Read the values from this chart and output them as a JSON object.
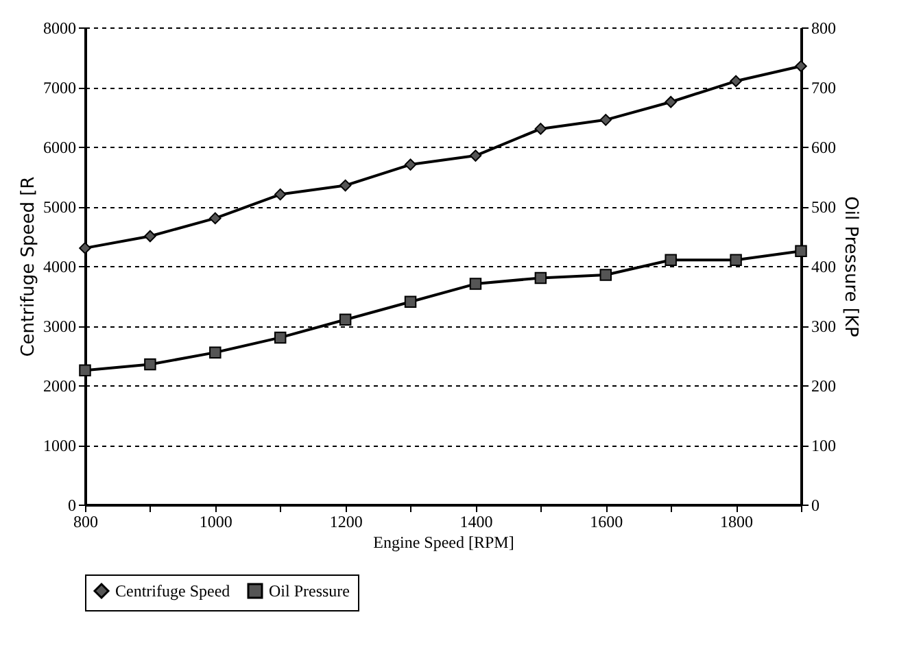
{
  "chart_data": {
    "type": "line",
    "xlabel": "Engine Speed [RPM]",
    "ylabel": "Centrifuge Speed [R",
    "y2label": "Oil Pressure [KP",
    "x": [
      800,
      900,
      1000,
      1100,
      1200,
      1300,
      1400,
      1500,
      1600,
      1700,
      1800,
      1900
    ],
    "series": [
      {
        "name": "Centrifuge Speed",
        "color": "#555555",
        "marker": "diamond",
        "values": [
          4300,
          4500,
          4800,
          5200,
          5350,
          5700,
          5850,
          6300,
          6450,
          6750,
          7100,
          7350
        ]
      },
      {
        "name": "Oil Pressure",
        "color": "#555555",
        "marker": "square",
        "axis": "y2",
        "values": [
          225,
          235,
          255,
          280,
          310,
          340,
          370,
          380,
          385,
          410,
          410,
          425
        ]
      }
    ],
    "xlim": [
      800,
      1900
    ],
    "xticks": [
      800,
      {
        "value": 900,
        "label": null
      },
      1000,
      {
        "value": 1100,
        "label": null
      },
      1200,
      {
        "value": 1300,
        "label": null
      },
      1400,
      {
        "value": 1500,
        "label": null
      },
      1600,
      {
        "value": 1700,
        "label": null
      },
      1800,
      {
        "value": 1900,
        "label": null
      }
    ],
    "ylim": [
      0,
      8000
    ],
    "yticks": [
      0,
      1000,
      2000,
      3000,
      4000,
      5000,
      6000,
      7000,
      8000
    ],
    "y2lim": [
      0,
      800
    ],
    "y2ticks": [
      0,
      100,
      200,
      300,
      400,
      500,
      600,
      700,
      800
    ],
    "grid": "y",
    "legend": "bottom",
    "line_style": "solid"
  }
}
